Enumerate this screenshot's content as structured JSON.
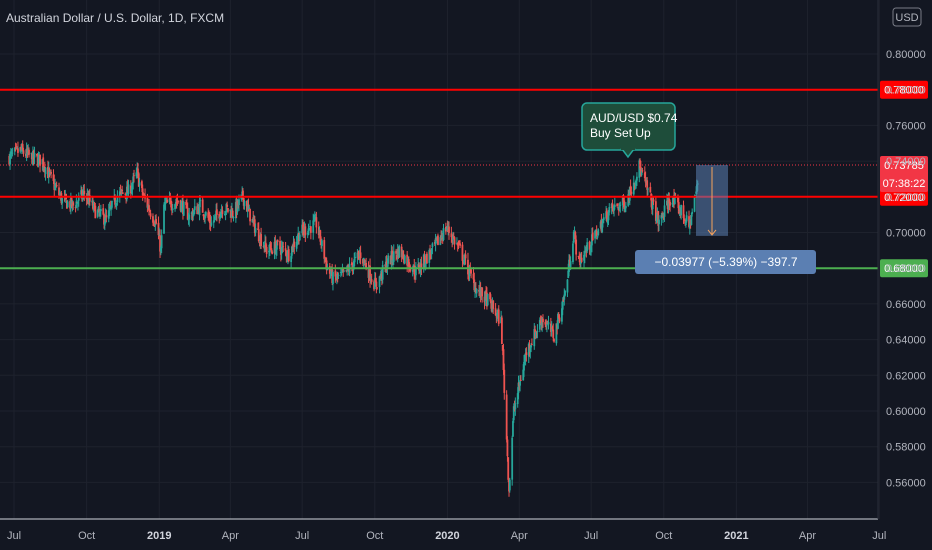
{
  "chart_data": {
    "type": "candlestick",
    "title": "Australian Dollar / U.S. Dollar, 1D, FXCM",
    "currency_button": "USD",
    "price_axis": {
      "range": [
        0.5455,
        0.8265
      ],
      "ticks": [
        "0.56000",
        "0.58000",
        "0.60000",
        "0.62000",
        "0.64000",
        "0.66000",
        "0.68000",
        "0.70000",
        "0.72000",
        "0.74000",
        "0.76000",
        "0.78000",
        "0.80000"
      ]
    },
    "time_axis": {
      "labels": [
        "Jul",
        "Oct",
        "2019",
        "Apr",
        "Jul",
        "Oct",
        "2020",
        "Apr",
        "Jul",
        "Oct",
        "2021",
        "Apr",
        "Jul"
      ],
      "bold": [
        false,
        false,
        true,
        false,
        false,
        false,
        true,
        false,
        false,
        false,
        true,
        false,
        false
      ]
    },
    "grid": true,
    "horizontal_lines": [
      {
        "price": 0.78,
        "label": "0.78000",
        "color": "#ff0000"
      },
      {
        "price": 0.72,
        "label": "0.72000",
        "color": "#ff0000"
      },
      {
        "price": 0.68,
        "label": "0.68000",
        "color": "#4caf50"
      }
    ],
    "current_price": {
      "value": 0.73785,
      "label": "0.73785",
      "countdown": "07:38:22",
      "color": "#f23645"
    },
    "callout": {
      "lines": [
        "AUD/USD $0.74",
        "Buy Set Up"
      ],
      "bg": "#1e4d3a",
      "border": "#26a69a"
    },
    "measure": {
      "from": 0.7378,
      "to": 0.6981,
      "label": "−0.03977 (−5.39%) −397.7"
    },
    "colors": {
      "up": "#26a69a",
      "down": "#ef5350",
      "background": "#131722",
      "measure": "#5b7fb2"
    },
    "path": {
      "start": "2018-06-25",
      "days_per_bar": 1,
      "anchors": [
        [
          "2018-06-25",
          0.742
        ],
        [
          "2018-07-09",
          0.746
        ],
        [
          "2018-07-23",
          0.742
        ],
        [
          "2018-08-06",
          0.74
        ],
        [
          "2018-08-20",
          0.727
        ],
        [
          "2018-08-31",
          0.718
        ],
        [
          "2018-09-14",
          0.715
        ],
        [
          "2018-09-28",
          0.722
        ],
        [
          "2018-10-12",
          0.712
        ],
        [
          "2018-10-26",
          0.707
        ],
        [
          "2018-11-09",
          0.721
        ],
        [
          "2018-11-23",
          0.723
        ],
        [
          "2018-12-04",
          0.733
        ],
        [
          "2018-12-10",
          0.722
        ],
        [
          "2018-12-28",
          0.705
        ],
        [
          "2019-01-03",
          0.69
        ],
        [
          "2019-01-07",
          0.715
        ],
        [
          "2019-01-25",
          0.718
        ],
        [
          "2019-02-08",
          0.709
        ],
        [
          "2019-02-22",
          0.715
        ],
        [
          "2019-03-08",
          0.705
        ],
        [
          "2019-03-22",
          0.714
        ],
        [
          "2019-04-05",
          0.711
        ],
        [
          "2019-04-17",
          0.72
        ],
        [
          "2019-04-30",
          0.705
        ],
        [
          "2019-05-17",
          0.69
        ],
        [
          "2019-05-31",
          0.692
        ],
        [
          "2019-06-14",
          0.688
        ],
        [
          "2019-06-28",
          0.7
        ],
        [
          "2019-07-19",
          0.705
        ],
        [
          "2019-08-02",
          0.68
        ],
        [
          "2019-08-09",
          0.674
        ],
        [
          "2019-08-23",
          0.676
        ],
        [
          "2019-09-13",
          0.688
        ],
        [
          "2019-10-02",
          0.67
        ],
        [
          "2019-10-18",
          0.684
        ],
        [
          "2019-11-01",
          0.69
        ],
        [
          "2019-11-22",
          0.678
        ],
        [
          "2019-12-13",
          0.69
        ],
        [
          "2019-12-31",
          0.703
        ],
        [
          "2020-01-17",
          0.69
        ],
        [
          "2020-02-07",
          0.668
        ],
        [
          "2020-02-21",
          0.662
        ],
        [
          "2020-03-09",
          0.65
        ],
        [
          "2020-03-19",
          0.556
        ],
        [
          "2020-03-25",
          0.6
        ],
        [
          "2020-04-10",
          0.633
        ],
        [
          "2020-04-30",
          0.652
        ],
        [
          "2020-05-15",
          0.642
        ],
        [
          "2020-05-29",
          0.666
        ],
        [
          "2020-06-09",
          0.7
        ],
        [
          "2020-06-15",
          0.683
        ],
        [
          "2020-07-03",
          0.696
        ],
        [
          "2020-07-24",
          0.712
        ],
        [
          "2020-08-14",
          0.717
        ],
        [
          "2020-08-31",
          0.737
        ],
        [
          "2020-09-25",
          0.705
        ],
        [
          "2020-10-09",
          0.719
        ],
        [
          "2020-10-23",
          0.712
        ],
        [
          "2020-11-02",
          0.703
        ],
        [
          "2020-11-13",
          0.727
        ],
        [
          "2020-11-27",
          0.737
        ],
        [
          "2020-12-04",
          0.74
        ]
      ]
    }
  }
}
